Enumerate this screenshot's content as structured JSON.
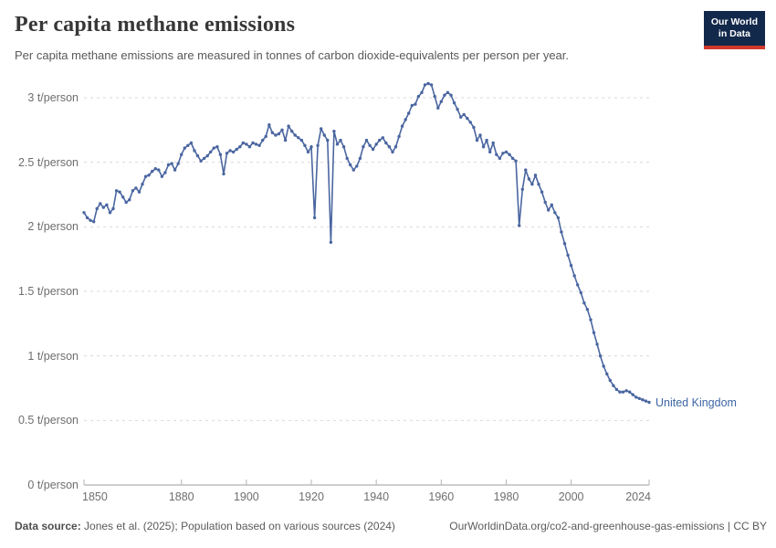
{
  "header": {
    "title": "Per capita methane emissions",
    "subtitle": "Per capita methane emissions are measured in tonnes of carbon dioxide-equivalents per person per year."
  },
  "logo": {
    "line1": "Our World",
    "line2": "in Data"
  },
  "footer": {
    "source_label": "Data source:",
    "source_text": " Jones et al. (2025); Population based on various sources (2024)",
    "link_text": "OurWorldinData.org/co2-and-greenhouse-gas-emissions | CC BY"
  },
  "colors": {
    "line": "#4a66a0",
    "series_label": "#3d66a5",
    "grid": "#dadada",
    "axis": "#9e9e9e",
    "navy": "#13294b",
    "red": "#d1382c"
  },
  "chart_data": {
    "type": "line",
    "title": "Per capita methane emissions",
    "unit": "t/person",
    "xlim": [
      1850,
      2024
    ],
    "ylim": [
      0,
      3
    ],
    "grid": "dashed-horizontal",
    "legend_position": "end-of-line-label",
    "x_ticks": [
      {
        "value": 1850,
        "label": "1850"
      },
      {
        "value": 1880,
        "label": "1880"
      },
      {
        "value": 1900,
        "label": "1900"
      },
      {
        "value": 1920,
        "label": "1920"
      },
      {
        "value": 1940,
        "label": "1940"
      },
      {
        "value": 1960,
        "label": "1960"
      },
      {
        "value": 1980,
        "label": "1980"
      },
      {
        "value": 2000,
        "label": "2000"
      },
      {
        "value": 2024,
        "label": "2024"
      }
    ],
    "y_ticks": [
      {
        "value": 0,
        "label": "0 t/person"
      },
      {
        "value": 0.5,
        "label": "0.5 t/person"
      },
      {
        "value": 1,
        "label": "1 t/person"
      },
      {
        "value": 1.5,
        "label": "1.5 t/person"
      },
      {
        "value": 2,
        "label": "2 t/person"
      },
      {
        "value": 2.5,
        "label": "2.5 t/person"
      },
      {
        "value": 3,
        "label": "3 t/person"
      }
    ],
    "series": [
      {
        "name": "United Kingdom",
        "points": [
          [
            1850,
            2.11
          ],
          [
            1851,
            2.07
          ],
          [
            1852,
            2.05
          ],
          [
            1853,
            2.04
          ],
          [
            1854,
            2.14
          ],
          [
            1855,
            2.18
          ],
          [
            1856,
            2.15
          ],
          [
            1857,
            2.17
          ],
          [
            1858,
            2.11
          ],
          [
            1859,
            2.14
          ],
          [
            1860,
            2.28
          ],
          [
            1861,
            2.27
          ],
          [
            1862,
            2.23
          ],
          [
            1863,
            2.19
          ],
          [
            1864,
            2.21
          ],
          [
            1865,
            2.28
          ],
          [
            1866,
            2.3
          ],
          [
            1867,
            2.27
          ],
          [
            1868,
            2.33
          ],
          [
            1869,
            2.39
          ],
          [
            1870,
            2.4
          ],
          [
            1871,
            2.43
          ],
          [
            1872,
            2.45
          ],
          [
            1873,
            2.44
          ],
          [
            1874,
            2.39
          ],
          [
            1875,
            2.42
          ],
          [
            1876,
            2.48
          ],
          [
            1877,
            2.49
          ],
          [
            1878,
            2.44
          ],
          [
            1879,
            2.49
          ],
          [
            1880,
            2.56
          ],
          [
            1881,
            2.61
          ],
          [
            1882,
            2.63
          ],
          [
            1883,
            2.65
          ],
          [
            1884,
            2.59
          ],
          [
            1885,
            2.55
          ],
          [
            1886,
            2.51
          ],
          [
            1887,
            2.53
          ],
          [
            1888,
            2.55
          ],
          [
            1889,
            2.58
          ],
          [
            1890,
            2.61
          ],
          [
            1891,
            2.62
          ],
          [
            1892,
            2.56
          ],
          [
            1893,
            2.41
          ],
          [
            1894,
            2.57
          ],
          [
            1895,
            2.59
          ],
          [
            1896,
            2.58
          ],
          [
            1897,
            2.6
          ],
          [
            1898,
            2.62
          ],
          [
            1899,
            2.65
          ],
          [
            1900,
            2.64
          ],
          [
            1901,
            2.62
          ],
          [
            1902,
            2.65
          ],
          [
            1903,
            2.64
          ],
          [
            1904,
            2.63
          ],
          [
            1905,
            2.67
          ],
          [
            1906,
            2.7
          ],
          [
            1907,
            2.79
          ],
          [
            1908,
            2.73
          ],
          [
            1909,
            2.71
          ],
          [
            1910,
            2.72
          ],
          [
            1911,
            2.75
          ],
          [
            1912,
            2.67
          ],
          [
            1913,
            2.78
          ],
          [
            1914,
            2.74
          ],
          [
            1915,
            2.71
          ],
          [
            1916,
            2.69
          ],
          [
            1917,
            2.67
          ],
          [
            1918,
            2.63
          ],
          [
            1919,
            2.58
          ],
          [
            1920,
            2.62
          ],
          [
            1921,
            2.07
          ],
          [
            1922,
            2.63
          ],
          [
            1923,
            2.76
          ],
          [
            1924,
            2.71
          ],
          [
            1925,
            2.67
          ],
          [
            1926,
            1.88
          ],
          [
            1927,
            2.74
          ],
          [
            1928,
            2.64
          ],
          [
            1929,
            2.67
          ],
          [
            1930,
            2.62
          ],
          [
            1931,
            2.53
          ],
          [
            1932,
            2.48
          ],
          [
            1933,
            2.44
          ],
          [
            1934,
            2.47
          ],
          [
            1935,
            2.53
          ],
          [
            1936,
            2.62
          ],
          [
            1937,
            2.67
          ],
          [
            1938,
            2.63
          ],
          [
            1939,
            2.6
          ],
          [
            1940,
            2.64
          ],
          [
            1941,
            2.67
          ],
          [
            1942,
            2.69
          ],
          [
            1943,
            2.65
          ],
          [
            1944,
            2.62
          ],
          [
            1945,
            2.58
          ],
          [
            1946,
            2.62
          ],
          [
            1947,
            2.7
          ],
          [
            1948,
            2.78
          ],
          [
            1949,
            2.83
          ],
          [
            1950,
            2.88
          ],
          [
            1951,
            2.94
          ],
          [
            1952,
            2.95
          ],
          [
            1953,
            3.01
          ],
          [
            1954,
            3.04
          ],
          [
            1955,
            3.1
          ],
          [
            1956,
            3.11
          ],
          [
            1957,
            3.1
          ],
          [
            1958,
            3.01
          ],
          [
            1959,
            2.92
          ],
          [
            1960,
            2.97
          ],
          [
            1961,
            3.02
          ],
          [
            1962,
            3.04
          ],
          [
            1963,
            3.02
          ],
          [
            1964,
            2.96
          ],
          [
            1965,
            2.91
          ],
          [
            1966,
            2.85
          ],
          [
            1967,
            2.87
          ],
          [
            1968,
            2.84
          ],
          [
            1969,
            2.81
          ],
          [
            1970,
            2.77
          ],
          [
            1971,
            2.67
          ],
          [
            1972,
            2.71
          ],
          [
            1973,
            2.62
          ],
          [
            1974,
            2.67
          ],
          [
            1975,
            2.58
          ],
          [
            1976,
            2.65
          ],
          [
            1977,
            2.56
          ],
          [
            1978,
            2.53
          ],
          [
            1979,
            2.57
          ],
          [
            1980,
            2.58
          ],
          [
            1981,
            2.56
          ],
          [
            1982,
            2.53
          ],
          [
            1983,
            2.51
          ],
          [
            1984,
            2.01
          ],
          [
            1985,
            2.29
          ],
          [
            1986,
            2.44
          ],
          [
            1987,
            2.37
          ],
          [
            1988,
            2.33
          ],
          [
            1989,
            2.4
          ],
          [
            1990,
            2.33
          ],
          [
            1991,
            2.27
          ],
          [
            1992,
            2.19
          ],
          [
            1993,
            2.13
          ],
          [
            1994,
            2.17
          ],
          [
            1995,
            2.11
          ],
          [
            1996,
            2.07
          ],
          [
            1997,
            1.96
          ],
          [
            1998,
            1.87
          ],
          [
            1999,
            1.78
          ],
          [
            2000,
            1.7
          ],
          [
            2001,
            1.62
          ],
          [
            2002,
            1.55
          ],
          [
            2003,
            1.49
          ],
          [
            2004,
            1.41
          ],
          [
            2005,
            1.36
          ],
          [
            2006,
            1.28
          ],
          [
            2007,
            1.18
          ],
          [
            2008,
            1.09
          ],
          [
            2009,
            1.0
          ],
          [
            2010,
            0.92
          ],
          [
            2011,
            0.86
          ],
          [
            2012,
            0.81
          ],
          [
            2013,
            0.77
          ],
          [
            2014,
            0.74
          ],
          [
            2015,
            0.72
          ],
          [
            2016,
            0.72
          ],
          [
            2017,
            0.73
          ],
          [
            2018,
            0.72
          ],
          [
            2019,
            0.7
          ],
          [
            2020,
            0.68
          ],
          [
            2021,
            0.67
          ],
          [
            2022,
            0.66
          ],
          [
            2023,
            0.65
          ],
          [
            2024,
            0.64
          ]
        ]
      }
    ]
  }
}
